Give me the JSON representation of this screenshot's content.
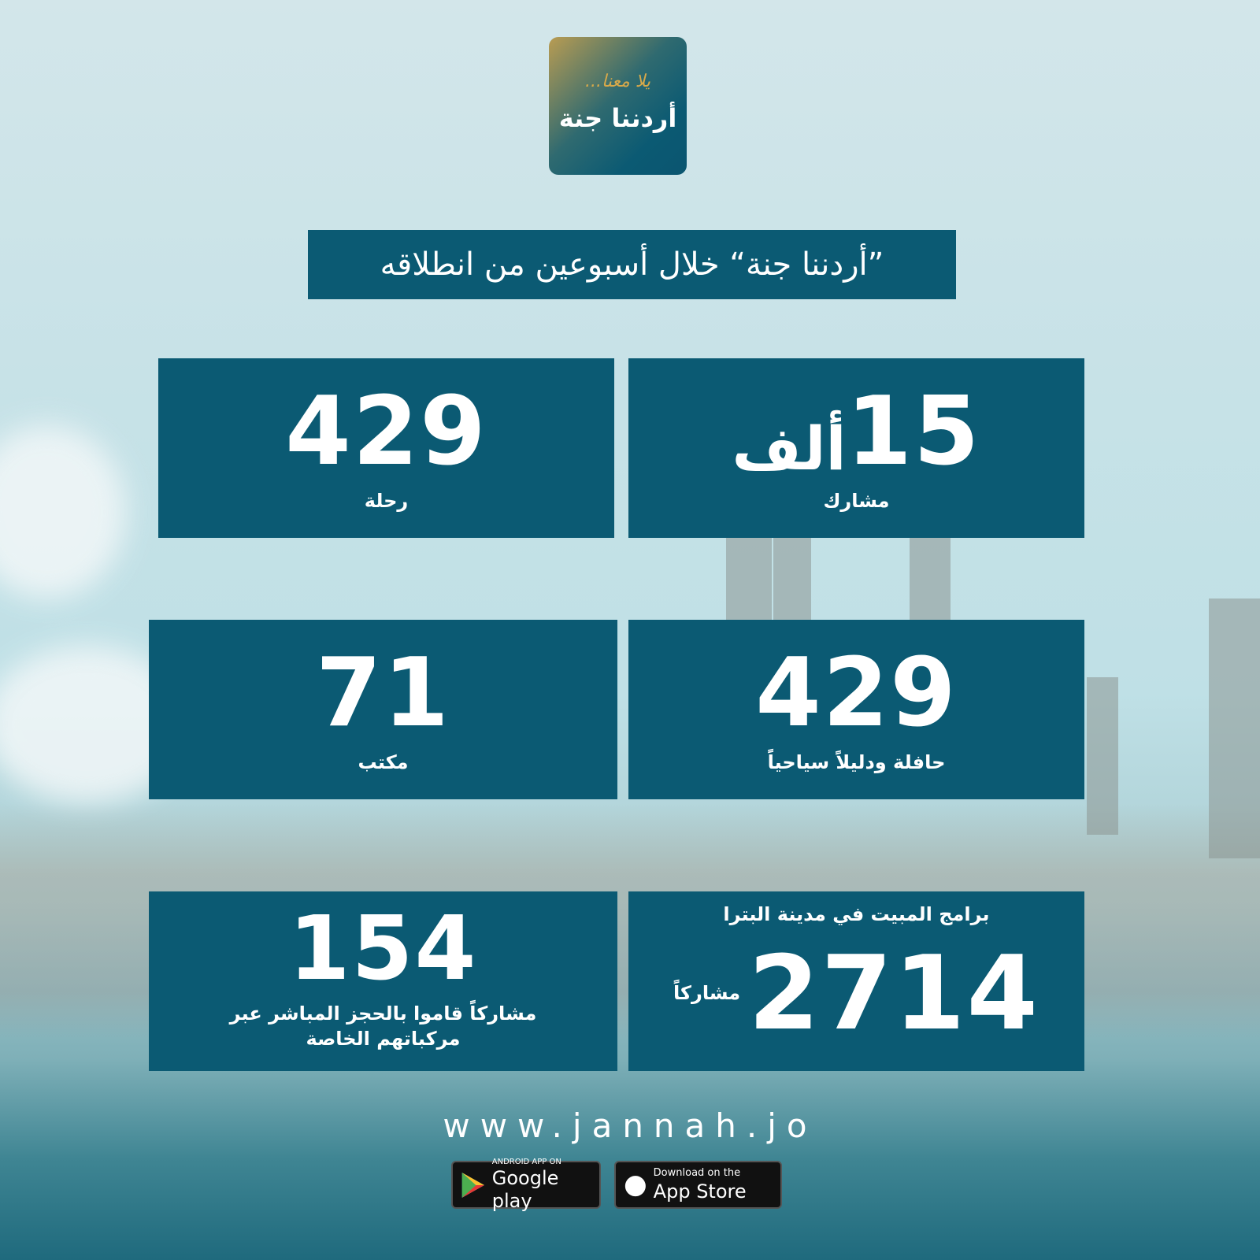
{
  "logo": {
    "tagline": "يلا معنا...",
    "name": "أردننا جنة"
  },
  "headline": "”أردننا جنة“ خلال أسبوعين من انطلاقه",
  "stats": [
    {
      "value": "15",
      "unit": "ألف",
      "label": "مشارك"
    },
    {
      "value": "429",
      "label": "رحلة"
    },
    {
      "value": "429",
      "label": "حافلة ودليلاً سياحياً"
    },
    {
      "value": "71",
      "label": "مكتب"
    },
    {
      "title": "برامج المبيت في مدينة البترا",
      "value": "2714",
      "label": "مشاركاً"
    },
    {
      "value": "154",
      "label": "مشاركاً قاموا بالحجز المباشر عبر مركباتهم الخاصة"
    }
  ],
  "website": "www.jannah.jo",
  "badges": {
    "google": {
      "small": "ANDROID APP ON",
      "big": "Google play",
      "icon": "google-play-icon"
    },
    "apple": {
      "small": "Download on the",
      "big": "App Store",
      "icon": "apple-icon"
    }
  },
  "colors": {
    "box": "#0b5a73",
    "accent": "#d8a94a"
  }
}
